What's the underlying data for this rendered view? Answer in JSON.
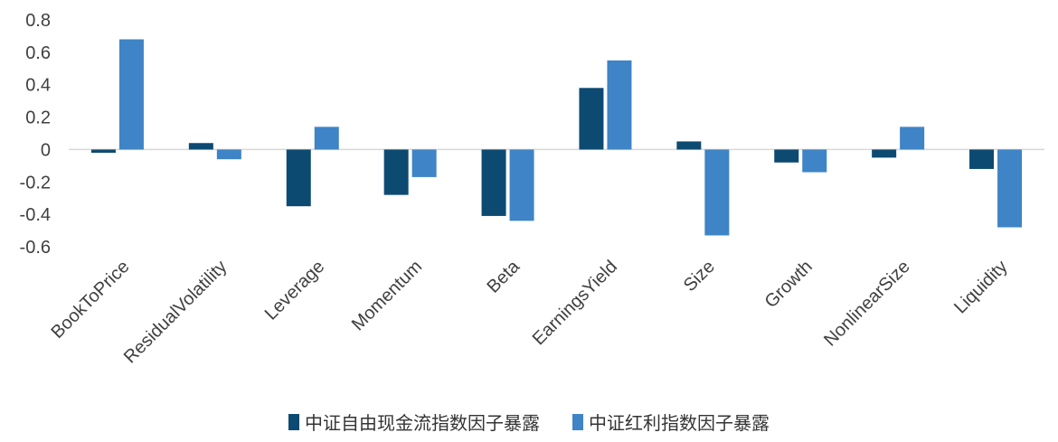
{
  "chart_data": {
    "type": "bar",
    "categories": [
      "BookToPrice",
      "ResidualVolatility",
      "Leverage",
      "Momentum",
      "Beta",
      "EarningsYield",
      "Size",
      "Growth",
      "NonlinearSize",
      "Liquidity"
    ],
    "series": [
      {
        "name": "中证自由现金流指数因子暴露",
        "color": "#0d4a72",
        "values": [
          -0.02,
          0.04,
          -0.35,
          -0.28,
          -0.41,
          0.38,
          0.05,
          -0.08,
          -0.05,
          -0.12
        ]
      },
      {
        "name": "中证红利指数因子暴露",
        "color": "#3e84c6",
        "values": [
          0.68,
          -0.06,
          0.14,
          -0.17,
          -0.44,
          0.55,
          -0.53,
          -0.14,
          0.14,
          -0.48
        ]
      }
    ],
    "yticks": [
      "0.8",
      "0.6",
      "0.4",
      "0.2",
      "0",
      "-0.2",
      "-0.4",
      "-0.6"
    ],
    "ylim": [
      -0.6,
      0.8
    ],
    "grid": false,
    "legend_position": "bottom-center"
  }
}
